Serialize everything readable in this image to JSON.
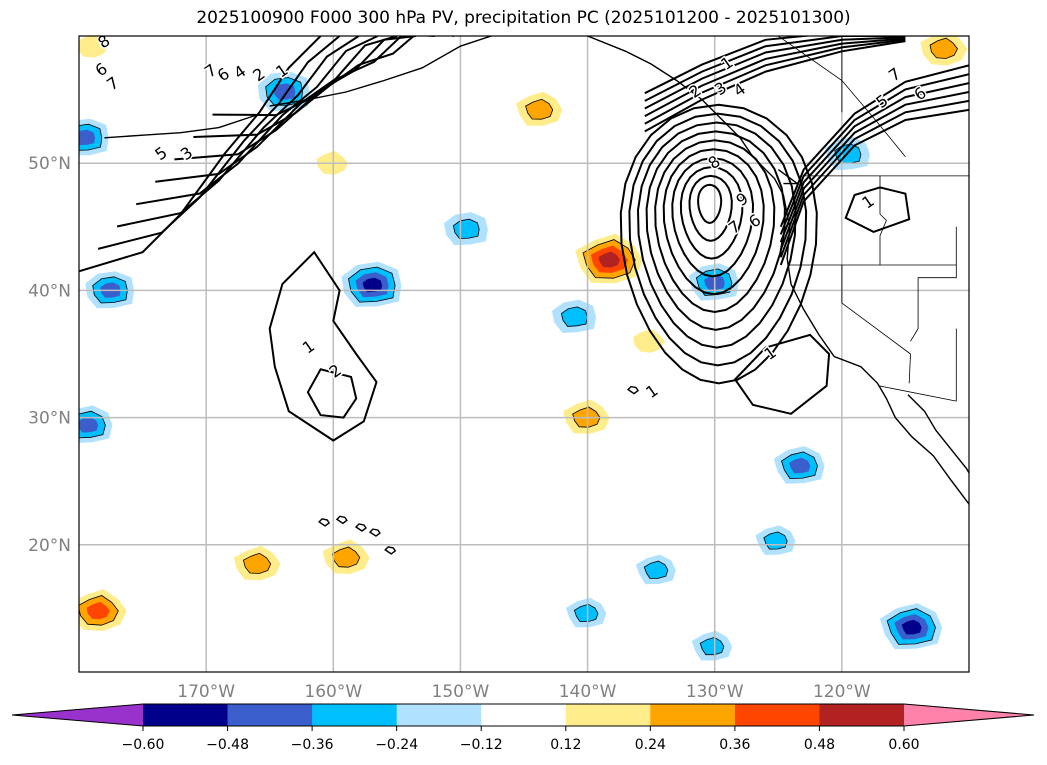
{
  "title": "2025100900 F000 300 hPa PV, precipitation PC (2025101200 - 2025101300)",
  "map": {
    "projection": "PlateCarree",
    "lon_range": [
      -180,
      -110
    ],
    "lat_range": [
      10,
      60
    ],
    "lon_ticks": [
      {
        "value": -170,
        "label": "170°W"
      },
      {
        "value": -160,
        "label": "160°W"
      },
      {
        "value": -150,
        "label": "150°W"
      },
      {
        "value": -140,
        "label": "140°W"
      },
      {
        "value": -130,
        "label": "130°W"
      },
      {
        "value": -120,
        "label": "120°W"
      }
    ],
    "lat_ticks": [
      {
        "value": 50,
        "label": "50°N"
      },
      {
        "value": 40,
        "label": "40°N"
      },
      {
        "value": 30,
        "label": "30°N"
      },
      {
        "value": 20,
        "label": "20°N"
      }
    ],
    "gridlines": true,
    "coastlines": true,
    "borders": true
  },
  "colorbar": {
    "levels": [
      -0.6,
      -0.48,
      -0.36,
      -0.24,
      -0.12,
      0.12,
      0.24,
      0.36,
      0.48,
      0.6
    ],
    "tick_labels": [
      "−0.60",
      "−0.48",
      "−0.36",
      "−0.24",
      "−0.12",
      "0.12",
      "0.24",
      "0.36",
      "0.48",
      "0.60"
    ],
    "colors": [
      "#9932cc",
      "#00008b",
      "#3a5fcd",
      "#00bfff",
      "#b0e2ff",
      "#ffffff",
      "#ffec8b",
      "#ffa500",
      "#ff4500",
      "#b22222",
      "#ff82ab"
    ],
    "extend": "both"
  },
  "pv_contour_labels": [
    {
      "text": "8",
      "lon": -178.0,
      "lat": 59.5
    },
    {
      "text": "6",
      "lon": -178.2,
      "lat": 57.3
    },
    {
      "text": "7",
      "lon": -177.3,
      "lat": 56.2
    },
    {
      "text": "7",
      "lon": -169.6,
      "lat": 57.2
    },
    {
      "text": "6",
      "lon": -168.6,
      "lat": 56.9
    },
    {
      "text": "4",
      "lon": -167.3,
      "lat": 57.1
    },
    {
      "text": "2",
      "lon": -165.8,
      "lat": 56.9
    },
    {
      "text": "1",
      "lon": -164.0,
      "lat": 57.2
    },
    {
      "text": "5",
      "lon": -173.5,
      "lat": 50.7
    },
    {
      "text": "3",
      "lon": -171.5,
      "lat": 50.7
    },
    {
      "text": "1",
      "lon": -161.9,
      "lat": 35.5
    },
    {
      "text": "2",
      "lon": -159.8,
      "lat": 33.6
    },
    {
      "text": "1",
      "lon": -129.0,
      "lat": 57.8
    },
    {
      "text": "2",
      "lon": -131.5,
      "lat": 55.6
    },
    {
      "text": "3",
      "lon": -129.5,
      "lat": 55.8
    },
    {
      "text": "4",
      "lon": -128.0,
      "lat": 55.7
    },
    {
      "text": "8",
      "lon": -130.0,
      "lat": 50.0
    },
    {
      "text": "9",
      "lon": -127.8,
      "lat": 47.1
    },
    {
      "text": "7",
      "lon": -128.4,
      "lat": 44.9
    },
    {
      "text": "6",
      "lon": -126.8,
      "lat": 45.4
    },
    {
      "text": "7",
      "lon": -115.8,
      "lat": 56.9
    },
    {
      "text": "6",
      "lon": -113.8,
      "lat": 55.4
    },
    {
      "text": "5",
      "lon": -116.8,
      "lat": 54.8
    },
    {
      "text": "1",
      "lon": -117.9,
      "lat": 46.9
    },
    {
      "text": "1",
      "lon": -125.6,
      "lat": 35.0
    },
    {
      "text": "1",
      "lon": -134.9,
      "lat": 32.0
    }
  ],
  "precip_anomalies": [
    {
      "sign": "neg",
      "peak": -0.4,
      "lon": -163.8,
      "lat": 55.6
    },
    {
      "sign": "neg",
      "peak": -0.36,
      "lon": -179.5,
      "lat": 52.0
    },
    {
      "sign": "neg",
      "peak": -0.36,
      "lon": -177.5,
      "lat": 40.0
    },
    {
      "sign": "neg",
      "peak": -0.48,
      "lon": -156.9,
      "lat": 40.4
    },
    {
      "sign": "neg",
      "peak": -0.3,
      "lon": -149.5,
      "lat": 44.8
    },
    {
      "sign": "neg",
      "peak": -0.3,
      "lon": -141.0,
      "lat": 37.9
    },
    {
      "sign": "neg",
      "peak": -0.36,
      "lon": -130.0,
      "lat": 40.6
    },
    {
      "sign": "neg",
      "peak": -0.3,
      "lon": -119.5,
      "lat": 50.7
    },
    {
      "sign": "neg",
      "peak": -0.36,
      "lon": -179.3,
      "lat": 29.4
    },
    {
      "sign": "neg",
      "peak": -0.36,
      "lon": -123.3,
      "lat": 26.2
    },
    {
      "sign": "neg",
      "peak": -0.48,
      "lon": -114.5,
      "lat": 13.5
    },
    {
      "sign": "neg",
      "peak": -0.24,
      "lon": -125.2,
      "lat": 20.3
    },
    {
      "sign": "neg",
      "peak": -0.24,
      "lon": -134.6,
      "lat": 18.0
    },
    {
      "sign": "neg",
      "peak": -0.24,
      "lon": -140.1,
      "lat": 14.6
    },
    {
      "sign": "neg",
      "peak": -0.24,
      "lon": -130.2,
      "lat": 12.0
    },
    {
      "sign": "pos",
      "peak": 0.3,
      "lon": -143.8,
      "lat": 54.2
    },
    {
      "sign": "pos",
      "peak": 0.52,
      "lon": -138.3,
      "lat": 42.4
    },
    {
      "sign": "pos",
      "peak": 0.3,
      "lon": -140.1,
      "lat": 30.0
    },
    {
      "sign": "pos",
      "peak": 0.3,
      "lon": -166.0,
      "lat": 18.5
    },
    {
      "sign": "pos",
      "peak": 0.3,
      "lon": -159.0,
      "lat": 19.0
    },
    {
      "sign": "pos",
      "peak": 0.4,
      "lon": -178.5,
      "lat": 14.8
    },
    {
      "sign": "pos",
      "peak": 0.3,
      "lon": -112.0,
      "lat": 59.0
    },
    {
      "sign": "pos",
      "peak": 0.14,
      "lon": -179.0,
      "lat": 59.2
    },
    {
      "sign": "pos",
      "peak": 0.14,
      "lon": -160.1,
      "lat": 50.0
    },
    {
      "sign": "pos",
      "peak": 0.14,
      "lon": -135.2,
      "lat": 36.0
    }
  ]
}
